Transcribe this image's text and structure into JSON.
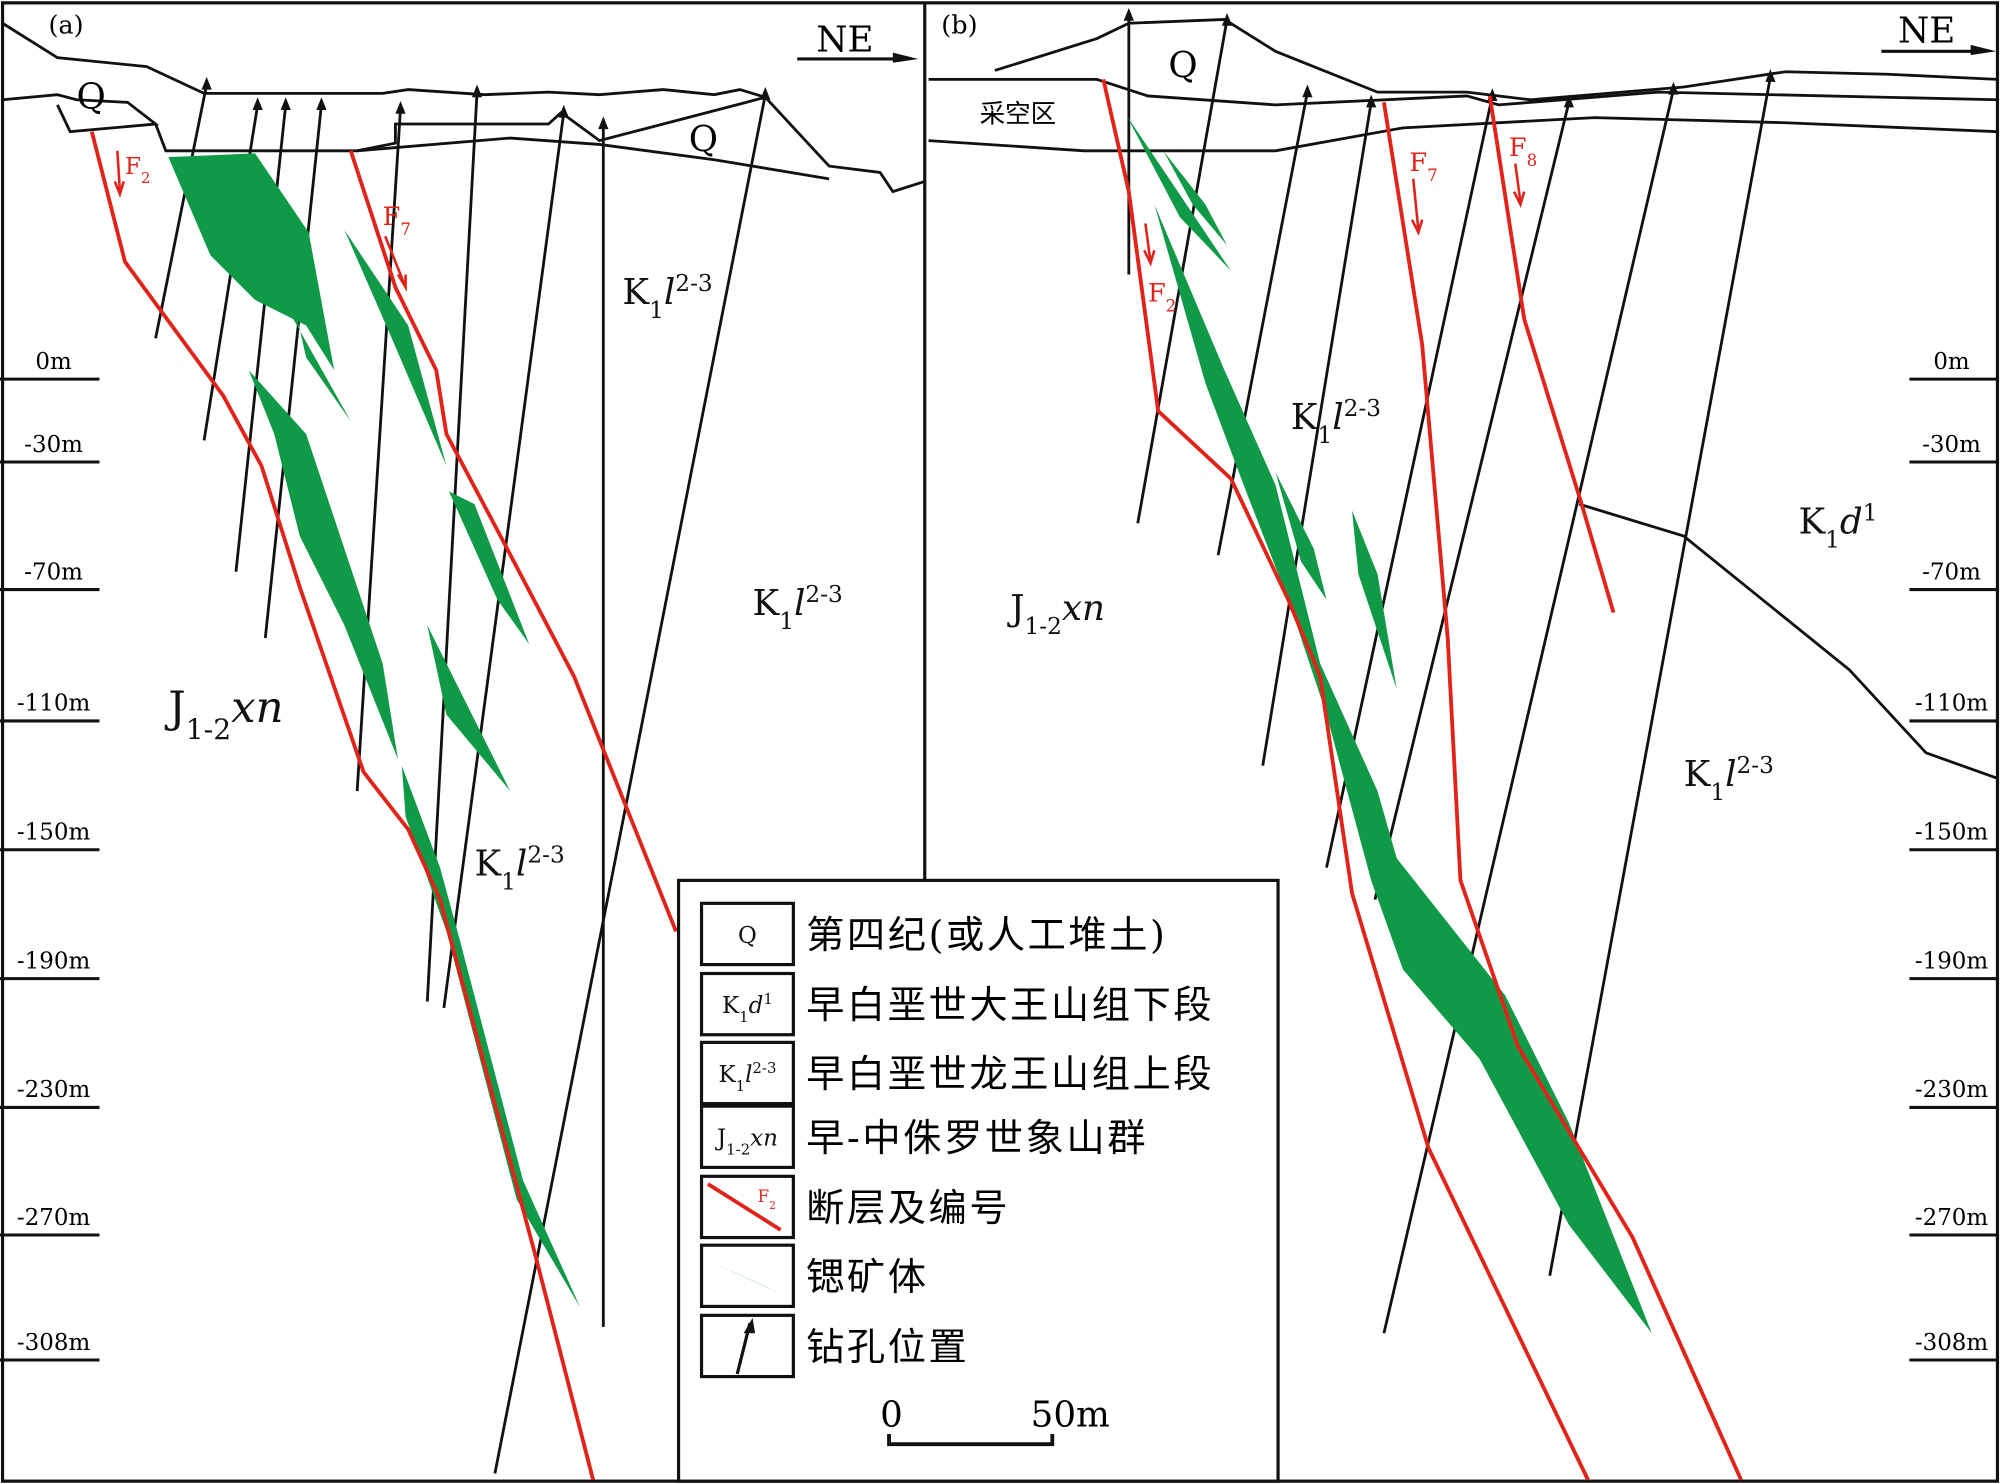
{
  "panel_a": {
    "label": "(a)",
    "direction": "NE",
    "q_labels": [
      "Q",
      "Q"
    ],
    "faults": [
      {
        "main": "F",
        "sub": "2"
      },
      {
        "main": "F",
        "sub": "7"
      }
    ],
    "formations": [
      {
        "main": "K",
        "sub": "1",
        "sym": "l",
        "sup": "2-3"
      },
      {
        "main": "K",
        "sub": "1",
        "sym": "l",
        "sup": "2-3"
      },
      {
        "main": "K",
        "sub": "1",
        "sym": "l",
        "sup": "2-3"
      },
      {
        "main": "J",
        "sub": "1-2",
        "sym": "xn"
      }
    ],
    "depth_labels": [
      "0m",
      "-30m",
      "-70m",
      "-110m",
      "-150m",
      "-190m",
      "-230m",
      "-270m",
      "-308m"
    ]
  },
  "panel_b": {
    "label": "(b)",
    "direction": "NE",
    "q_labels": [
      "Q"
    ],
    "goaf": "采空区",
    "faults": [
      {
        "main": "F",
        "sub": "2"
      },
      {
        "main": "F",
        "sub": "7"
      },
      {
        "main": "F",
        "sub": "8"
      }
    ],
    "formations": [
      {
        "main": "K",
        "sub": "1",
        "sym": "l",
        "sup": "2-3"
      },
      {
        "main": "K",
        "sub": "1",
        "sym": "l",
        "sup": "2-3"
      },
      {
        "main": "K",
        "sub": "1",
        "sym": "d",
        "sup": "1"
      },
      {
        "main": "J",
        "sub": "1-2",
        "sym": "xn"
      }
    ],
    "depth_labels": [
      "0m",
      "-30m",
      "-70m",
      "-110m",
      "-150m",
      "-190m",
      "-230m",
      "-270m",
      "-308m"
    ]
  },
  "legend": {
    "items": [
      {
        "symbol": {
          "main": "Q"
        },
        "text": "第四纪(或人工堆土)"
      },
      {
        "symbol": {
          "main": "K",
          "sub": "1",
          "sym": "d",
          "sup": "1"
        },
        "text": "早白垩世大王山组下段"
      },
      {
        "symbol": {
          "main": "K",
          "sub": "1",
          "sym": "l",
          "sup": "2-3"
        },
        "text": "早白垩世龙王山组上段"
      },
      {
        "symbol": {
          "main": "J",
          "sub": "1-2",
          "sym": "xn"
        },
        "text": "早-中侏罗世象山群"
      },
      {
        "symbol": {
          "main": "F",
          "sub": "2"
        },
        "text": "断层及编号"
      },
      {
        "text": "锶矿体"
      },
      {
        "text": "钻孔位置"
      }
    ]
  },
  "scale_bar": {
    "start": "0",
    "end": "50m"
  }
}
